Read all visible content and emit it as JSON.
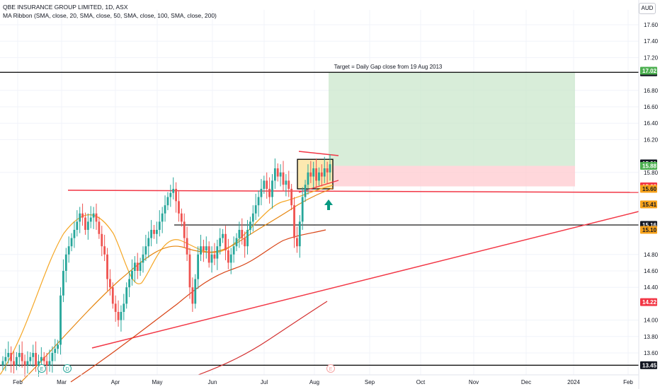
{
  "legend": {
    "title": "QBE INSURANCE GROUP LIMITED, 1D, ASX",
    "indicator": "MA Ribbon (SMA, close, 20, SMA, close, 50, SMA, close, 100, SMA, close, 200)"
  },
  "currency": "AUD",
  "annotation": "Target = Daily Gap close from 19 Aug 2013",
  "colors": {
    "up": "#26a69a",
    "down": "#ef5350",
    "ma_fast": "#f5a623",
    "ma_mid": "#e6860f",
    "ma_slow": "#d84315",
    "ma_200": "#d32f2f",
    "trend": "#f23645",
    "target_zone": "#c8e6c9",
    "stop_zone": "#ffcdd2",
    "box": "#fde9b0"
  },
  "chart_data": {
    "type": "candlestick",
    "x_labels": [
      "Feb",
      "Mar",
      "Apr",
      "May",
      "Jun",
      "Jul",
      "Aug",
      "Sep",
      "Oct",
      "Nov",
      "Dec",
      "2024",
      "Feb"
    ],
    "y_ticks": [
      "17.60",
      "17.40",
      "17.20",
      "16.80",
      "16.60",
      "16.40",
      "16.20",
      "15.80",
      "14.80",
      "14.60",
      "14.40",
      "14.00",
      "13.80",
      "13.60"
    ],
    "ylim": [
      13.4,
      17.8
    ],
    "price_tags": [
      {
        "label": "17.02",
        "value": 17.02,
        "style": "dark"
      },
      {
        "label": "17.02",
        "value": 17.04,
        "style": "green"
      },
      {
        "label": "15.91",
        "value": 15.91,
        "style": "dark"
      },
      {
        "label": "15.88",
        "value": 15.88,
        "style": "green"
      },
      {
        "label": "15.63",
        "value": 15.63,
        "style": "red"
      },
      {
        "label": "15.60",
        "value": 15.6,
        "style": "orange"
      },
      {
        "label": "15.41",
        "value": 15.41,
        "style": "orange"
      },
      {
        "label": "15.16",
        "value": 15.16,
        "style": "dark"
      },
      {
        "label": "15.10",
        "value": 15.1,
        "style": "orange"
      },
      {
        "label": "14.22",
        "value": 14.22,
        "style": "red"
      },
      {
        "label": "13.45",
        "value": 13.45,
        "style": "dark"
      }
    ],
    "horizontal_levels": [
      17.02,
      15.16,
      13.45
    ],
    "target_zone": {
      "from_price": 15.88,
      "to_price": 17.02
    },
    "stop_zone": {
      "from_price": 15.63,
      "to_price": 15.88
    },
    "consolidation_box": {
      "top": 15.96,
      "bottom": 15.6
    },
    "event_markers": [
      "E",
      "D",
      "E"
    ],
    "closes": [
      13.5,
      13.55,
      13.6,
      13.5,
      13.45,
      13.55,
      13.6,
      13.5,
      13.45,
      13.5,
      13.55,
      13.6,
      13.45,
      13.5,
      13.55,
      13.5,
      13.45,
      13.5,
      13.6,
      13.65,
      13.7,
      14.3,
      14.6,
      14.8,
      14.9,
      15.0,
      15.1,
      15.2,
      15.3,
      15.25,
      15.1,
      15.2,
      15.25,
      15.3,
      15.2,
      15.05,
      14.9,
      14.8,
      14.5,
      14.4,
      14.2,
      14.1,
      14.0,
      14.1,
      14.2,
      14.4,
      14.5,
      14.6,
      14.7,
      14.6,
      14.7,
      14.8,
      14.9,
      15.0,
      15.1,
      15.05,
      15.1,
      15.2,
      15.3,
      15.4,
      15.5,
      15.55,
      15.6,
      15.45,
      15.3,
      15.2,
      15.0,
      14.8,
      14.4,
      14.2,
      14.5,
      14.8,
      14.9,
      14.85,
      14.9,
      14.7,
      14.8,
      14.75,
      14.9,
      15.0,
      15.05,
      14.85,
      14.7,
      14.8,
      14.9,
      15.0,
      15.1,
      15.0,
      14.9,
      15.1,
      15.2,
      15.3,
      15.4,
      15.5,
      15.6,
      15.7,
      15.6,
      15.5,
      15.7,
      15.85,
      15.75,
      15.8,
      15.65,
      15.7,
      15.6,
      15.4,
      15.0,
      14.9,
      15.2,
      15.5,
      15.65,
      15.8,
      15.75,
      15.85,
      15.7,
      15.8,
      15.75,
      15.85,
      15.8,
      15.9
    ]
  }
}
